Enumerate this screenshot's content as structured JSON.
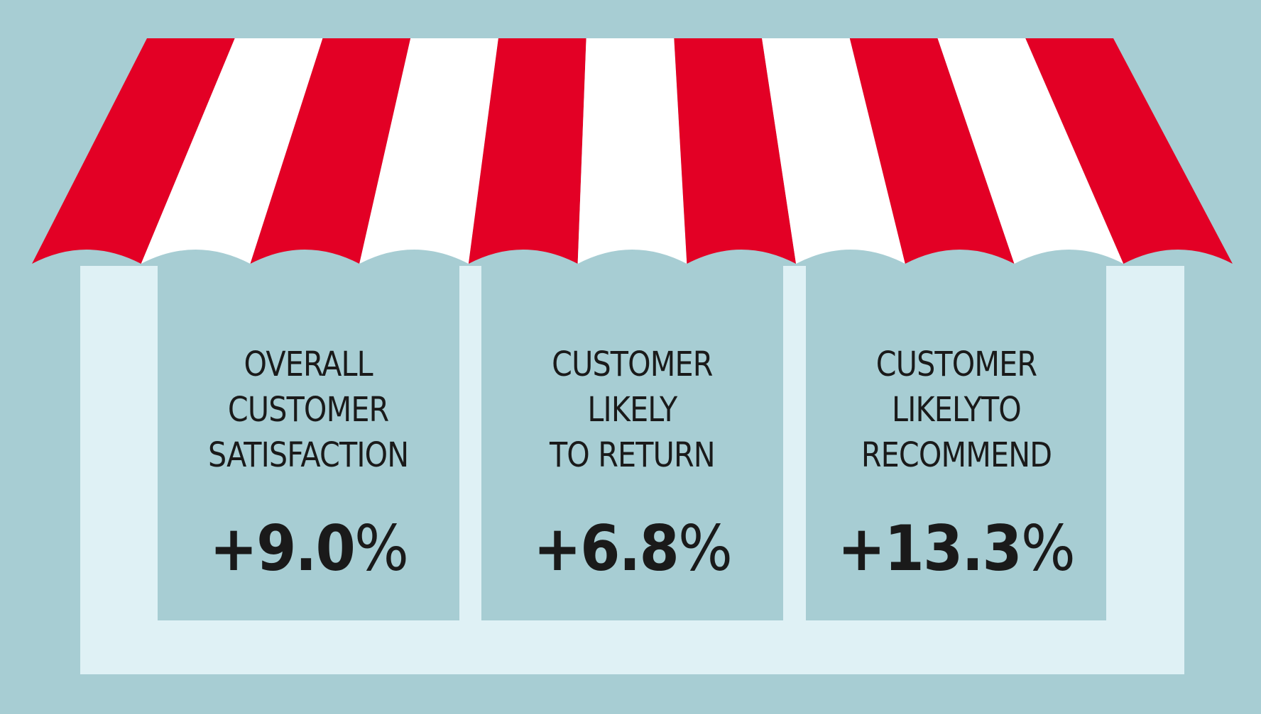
{
  "panels": [
    {
      "label_lines": [
        "OVERALL",
        "CUSTOMER",
        "SATISFACTION"
      ],
      "value": "+9.0",
      "unit": "%"
    },
    {
      "label_lines": [
        "CUSTOMER",
        "LIKELY",
        "TO RETURN"
      ],
      "value": "+6.8",
      "unit": "%"
    },
    {
      "label_lines": [
        "CUSTOMER",
        "LIKELYTO",
        "RECOMMEND"
      ],
      "value": "+13.3",
      "unit": "%"
    }
  ],
  "colors": {
    "background": "#a7cdd3",
    "storefront": "#dff1f5",
    "awning_red": "#e30025",
    "awning_white": "#ffffff",
    "text": "#1a1a1a"
  }
}
